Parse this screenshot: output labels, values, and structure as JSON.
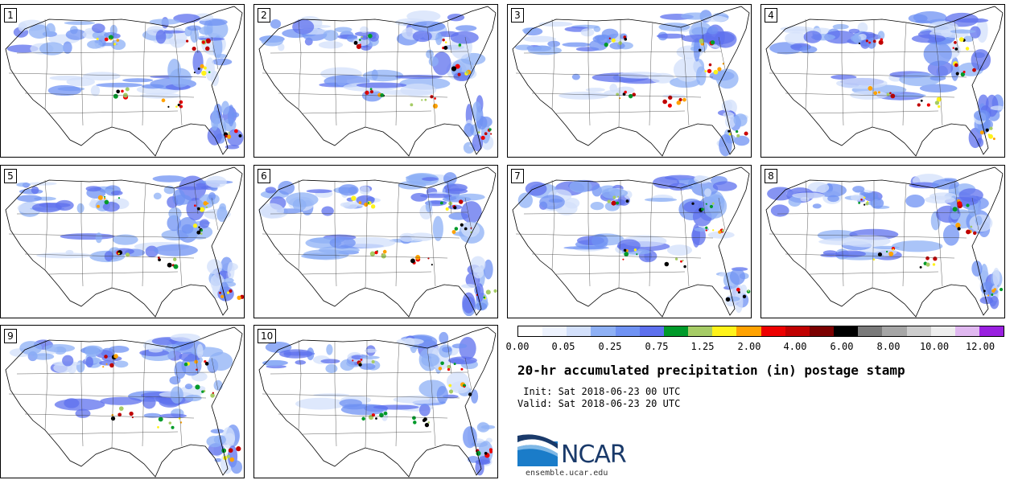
{
  "panels": [
    {
      "label": "1"
    },
    {
      "label": "2"
    },
    {
      "label": "3"
    },
    {
      "label": "4"
    },
    {
      "label": "5"
    },
    {
      "label": "6"
    },
    {
      "label": "7"
    },
    {
      "label": "8"
    },
    {
      "label": "9"
    },
    {
      "label": "10"
    }
  ],
  "colorbar": {
    "colors": [
      "#ffffff",
      "#eef3fe",
      "#d3e0fb",
      "#8eb0f5",
      "#6f92f3",
      "#5d70ee",
      "#009a2a",
      "#a6cc66",
      "#fff31a",
      "#ffa200",
      "#ed0000",
      "#c00000",
      "#7b0000",
      "#000000",
      "#7a7a7a",
      "#a6a6a6",
      "#cdcdcd",
      "#eeeeee",
      "#e0b8f0",
      "#9a20e0"
    ],
    "tick_labels": [
      "0.00",
      "0.05",
      "0.25",
      "0.75",
      "1.25",
      "2.00",
      "4.00",
      "6.00",
      "8.00",
      "10.00",
      "12.00"
    ]
  },
  "title": "20-hr accumulated precipitation (in) postage stamp",
  "init": " Init: Sat 2018-06-23 00 UTC",
  "valid": "Valid: Sat 2018-06-23 20 UTC",
  "logo": {
    "text": "NCAR",
    "site": "ensemble.ucar.edu"
  }
}
